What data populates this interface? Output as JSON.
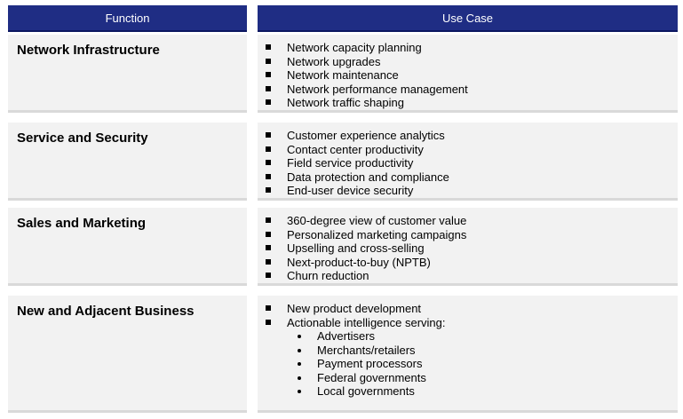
{
  "header": {
    "function": "Function",
    "use_case": "Use Case"
  },
  "rows": [
    {
      "function": "Network Infrastructure",
      "use_cases": [
        "Network capacity planning",
        "Network upgrades",
        "Network maintenance",
        "Network performance management",
        "Network traffic shaping"
      ]
    },
    {
      "function": "Service and Security",
      "use_cases": [
        "Customer experience analytics",
        "Contact center productivity",
        "Field service productivity",
        "Data protection and compliance",
        "End-user device security"
      ]
    },
    {
      "function": "Sales and Marketing",
      "use_cases": [
        "360-degree view of customer value",
        "Personalized marketing campaigns",
        "Upselling and cross-selling",
        "Next-product-to-buy (NPTB)",
        "Churn reduction"
      ]
    },
    {
      "function": "New and Adjacent Business",
      "use_cases": [
        "New product development",
        "Actionable intelligence serving:"
      ],
      "sub_items": [
        "Advertisers",
        "Merchants/retailers",
        "Payment processors",
        "Federal governments",
        "Local governments"
      ]
    }
  ]
}
